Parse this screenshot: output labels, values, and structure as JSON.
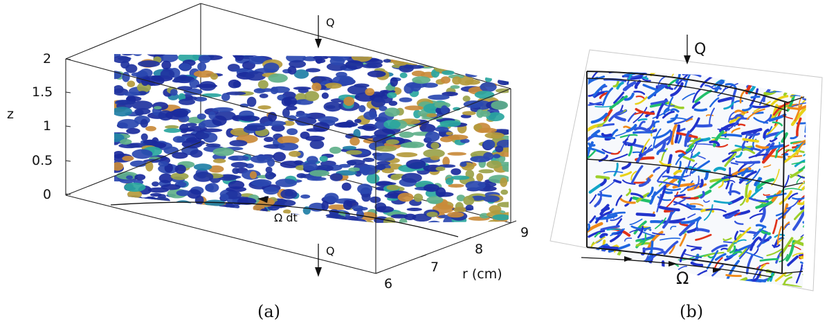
{
  "panel_a": {
    "caption": "(a)",
    "z_label": "z",
    "z_ticks": [
      "2",
      "1.5",
      "1",
      "0.5",
      "0"
    ],
    "r_label": "r (cm)",
    "r_ticks": [
      "6",
      "7",
      "8",
      "9"
    ],
    "flow_top_label": "Q",
    "flow_bottom_label": "Q",
    "rotation_label": "Ω dt",
    "blob_colors": [
      "#1a2a9c",
      "#20339f",
      "#2a48b0",
      "#1f7fa6",
      "#2aa6a0",
      "#5fb08a",
      "#b49a3c",
      "#c98a3a",
      "#9aa24a"
    ]
  },
  "panel_b": {
    "caption": "(b)",
    "flow_label": "Q",
    "rotation_label": "Ω",
    "stroke_colors": [
      "#2233cc",
      "#3355dd",
      "#1f66e0",
      "#11a5c8",
      "#22c06a",
      "#9ccf2a",
      "#e8d21a",
      "#f08a1a",
      "#e0321a"
    ]
  }
}
